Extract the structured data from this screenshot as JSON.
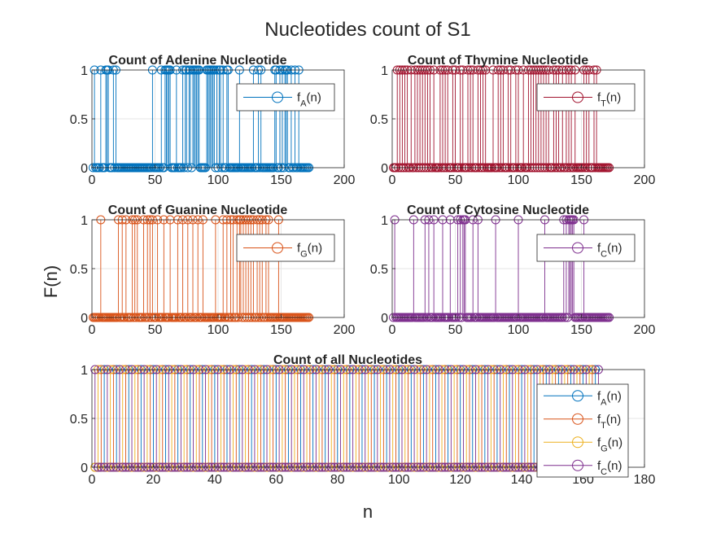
{
  "figure": {
    "title": "Nucleotides count of S1",
    "ylabel": "F(n)",
    "xlabel": "n"
  },
  "colors": {
    "A": "#0072BD",
    "T": "#A2142F",
    "G": "#D95319",
    "C": "#7E2F8E",
    "all_A": "#0072BD",
    "all_T": "#D95319",
    "all_G": "#EDB120",
    "all_C": "#7E2F8E"
  },
  "chart_data": [
    {
      "type": "stem",
      "title": "Count of Adenine Nucleotide",
      "xlim": [
        0,
        200
      ],
      "ylim": [
        0,
        1
      ],
      "xticks": [
        "0",
        "50",
        "100",
        "150",
        "200"
      ],
      "yticks": [
        "0",
        "0.5",
        "1"
      ],
      "legend": {
        "placement": "upper-right",
        "entries": [
          {
            "base": "f",
            "sub": "A",
            "suffix": "(n)"
          }
        ]
      },
      "n": 172,
      "ones": [
        2,
        7,
        11,
        12,
        13,
        17,
        19,
        48,
        55,
        58,
        59,
        60,
        61,
        62,
        67,
        72,
        74,
        75,
        77,
        78,
        80,
        81,
        82,
        83,
        84,
        85,
        91,
        92,
        93,
        94,
        95,
        96,
        97,
        99,
        101,
        102,
        104,
        107,
        108,
        117,
        128,
        132,
        134,
        145,
        146,
        149,
        151,
        153,
        154,
        155,
        158,
        161,
        164
      ],
      "series": [
        {
          "name": "f_A(n)",
          "color_key": "A"
        }
      ]
    },
    {
      "type": "stem",
      "title": "Count of Thymine Nucleotide",
      "xlim": [
        0,
        200
      ],
      "ylim": [
        0,
        1
      ],
      "xticks": [
        "0",
        "50",
        "100",
        "150",
        "200"
      ],
      "yticks": [
        "0",
        "0.5",
        "1"
      ],
      "legend": {
        "placement": "upper-right",
        "entries": [
          {
            "base": "f",
            "sub": "T",
            "suffix": "(n)"
          }
        ]
      },
      "n": 172,
      "ones": [
        4,
        6,
        8,
        10,
        12,
        15,
        18,
        20,
        22,
        24,
        26,
        28,
        30,
        33,
        38,
        40,
        42,
        44,
        48,
        50,
        54,
        56,
        60,
        62,
        64,
        68,
        70,
        72,
        74,
        80,
        84,
        86,
        88,
        92,
        94,
        98,
        100,
        104,
        108,
        110,
        112,
        114,
        116,
        118,
        120,
        122,
        124,
        128,
        130,
        132,
        135,
        138,
        140,
        142,
        145,
        152,
        154,
        156,
        160,
        162
      ],
      "series": [
        {
          "name": "f_T(n)",
          "color_key": "T"
        }
      ]
    },
    {
      "type": "stem",
      "title": "Count of Guanine Nucleotide",
      "xlim": [
        0,
        200
      ],
      "ylim": [
        0,
        1
      ],
      "xticks": [
        "0",
        "50",
        "100",
        "150",
        "200"
      ],
      "yticks": [
        "0",
        "0.5",
        "1"
      ],
      "legend": {
        "placement": "upper-right",
        "entries": [
          {
            "base": "f",
            "sub": "G",
            "suffix": "(n)"
          }
        ]
      },
      "n": 172,
      "ones": [
        7,
        21,
        24,
        27,
        32,
        34,
        36,
        41,
        44,
        46,
        48,
        52,
        57,
        62,
        68,
        72,
        76,
        80,
        84,
        88,
        98,
        104,
        107,
        110,
        112,
        115,
        117,
        118,
        120,
        122,
        124,
        126,
        128,
        131,
        133,
        135,
        138,
        140,
        148
      ],
      "series": [
        {
          "name": "f_G(n)",
          "color_key": "G"
        }
      ]
    },
    {
      "type": "stem",
      "title": "Count of Cytosine Nucleotide",
      "xlim": [
        0,
        200
      ],
      "ylim": [
        0,
        1
      ],
      "xticks": [
        "0",
        "50",
        "100",
        "150",
        "200"
      ],
      "yticks": [
        "0",
        "0.5",
        "1"
      ],
      "legend": {
        "placement": "upper-right",
        "entries": [
          {
            "base": "f",
            "sub": "C",
            "suffix": "(n)"
          }
        ]
      },
      "n": 172,
      "ones": [
        2,
        17,
        26,
        29,
        33,
        40,
        46,
        52,
        54,
        56,
        57,
        58,
        64,
        68,
        82,
        100,
        121,
        136,
        138,
        140,
        141,
        142,
        143,
        144,
        152
      ],
      "series": [
        {
          "name": "f_C(n)",
          "color_key": "C"
        }
      ]
    },
    {
      "type": "stem",
      "title": "Count of all Nucleotides",
      "xlim": [
        0,
        180
      ],
      "ylim": [
        0,
        1
      ],
      "xticks": [
        "0",
        "20",
        "40",
        "60",
        "80",
        "100",
        "120",
        "140",
        "160",
        "180"
      ],
      "yticks": [
        "0",
        "0.5",
        "1"
      ],
      "legend": {
        "placement": "lower-right",
        "entries": [
          {
            "base": "f",
            "sub": "A",
            "suffix": "(n)"
          },
          {
            "base": "f",
            "sub": "T",
            "suffix": "(n)"
          },
          {
            "base": "f",
            "sub": "G",
            "suffix": "(n)"
          },
          {
            "base": "f",
            "sub": "C",
            "suffix": "(n)"
          }
        ]
      },
      "n": 165,
      "series": [
        {
          "name": "f_A(n)",
          "color_key": "all_A",
          "offset": 0
        },
        {
          "name": "f_T(n)",
          "color_key": "all_T",
          "offset": 1
        },
        {
          "name": "f_G(n)",
          "color_key": "all_G",
          "offset": 2
        },
        {
          "name": "f_C(n)",
          "color_key": "all_C",
          "offset": 3
        }
      ]
    }
  ]
}
